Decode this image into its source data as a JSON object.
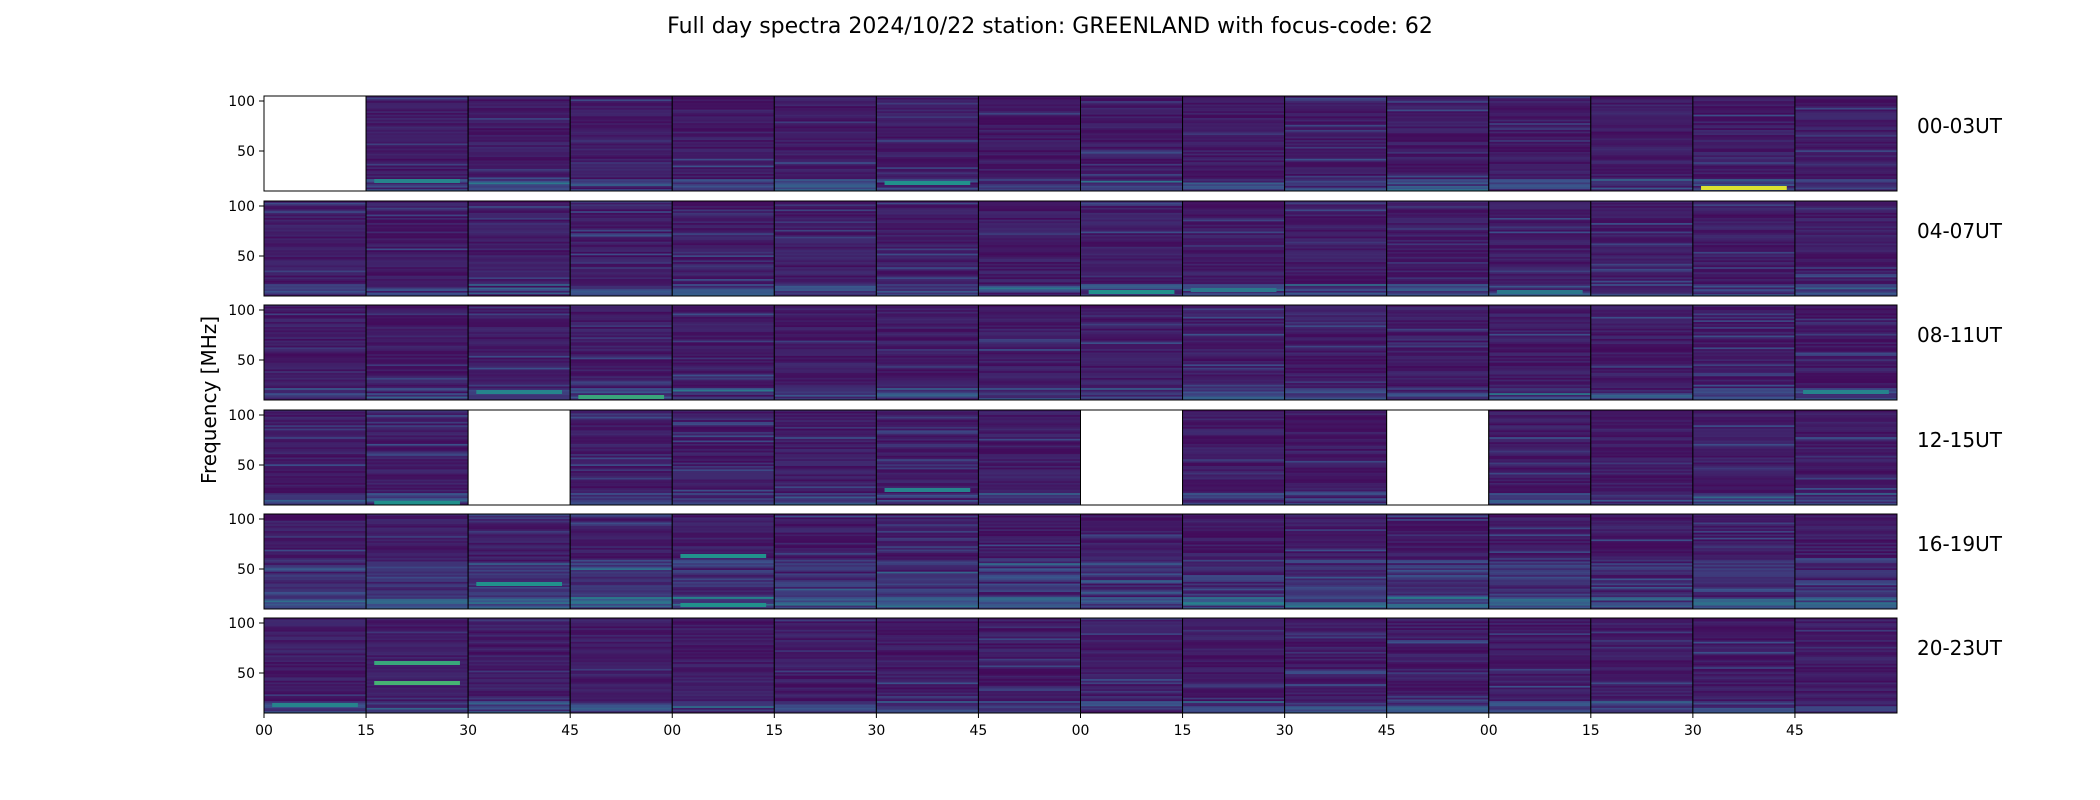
{
  "chart_data": {
    "type": "heatmap",
    "title": "Full day spectra 2024/10/22 station: GREENLAND with focus-code: 62",
    "ylabel": "Frequency [MHz]",
    "ylim": [
      10,
      105
    ],
    "yticks": [
      50,
      100
    ],
    "xticks": [
      "00",
      "15",
      "30",
      "45",
      "00",
      "15",
      "30",
      "45",
      "00",
      "15",
      "30",
      "45",
      "00",
      "15",
      "30",
      "45"
    ],
    "panels_per_row": 16,
    "colormap": "viridis",
    "rows": [
      {
        "label": "00-03UT",
        "missing": [
          0
        ],
        "features": [
          {
            "panel": 14,
            "freq": 13,
            "level": 0.95
          },
          {
            "panel": 6,
            "freq": 18,
            "level": 0.5
          },
          {
            "panel": 1,
            "freq": 20,
            "level": 0.45
          }
        ]
      },
      {
        "label": "04-07UT",
        "missing": [],
        "features": [
          {
            "panel": 8,
            "freq": 14,
            "level": 0.5
          },
          {
            "panel": 9,
            "freq": 16,
            "level": 0.4
          },
          {
            "panel": 12,
            "freq": 14,
            "level": 0.4
          }
        ]
      },
      {
        "label": "08-11UT",
        "missing": [],
        "features": [
          {
            "panel": 3,
            "freq": 13,
            "level": 0.6
          },
          {
            "panel": 2,
            "freq": 18,
            "level": 0.45
          },
          {
            "panel": 15,
            "freq": 18,
            "level": 0.45
          }
        ]
      },
      {
        "label": "12-15UT",
        "missing": [
          2,
          8,
          11
        ],
        "features": [
          {
            "panel": 1,
            "freq": 12,
            "level": 0.5
          },
          {
            "panel": 6,
            "freq": 25,
            "level": 0.45
          }
        ]
      },
      {
        "label": "16-19UT",
        "missing": [],
        "features": [
          {
            "panel": 2,
            "freq": 35,
            "level": 0.5
          },
          {
            "panel": 4,
            "freq": 63,
            "level": 0.5
          },
          {
            "panel": 4,
            "freq": 14,
            "level": 0.5
          }
        ]
      },
      {
        "label": "20-23UT",
        "missing": [],
        "features": [
          {
            "panel": 1,
            "freq": 60,
            "level": 0.6
          },
          {
            "panel": 1,
            "freq": 40,
            "level": 0.65
          },
          {
            "panel": 0,
            "freq": 18,
            "level": 0.45
          }
        ]
      }
    ]
  }
}
